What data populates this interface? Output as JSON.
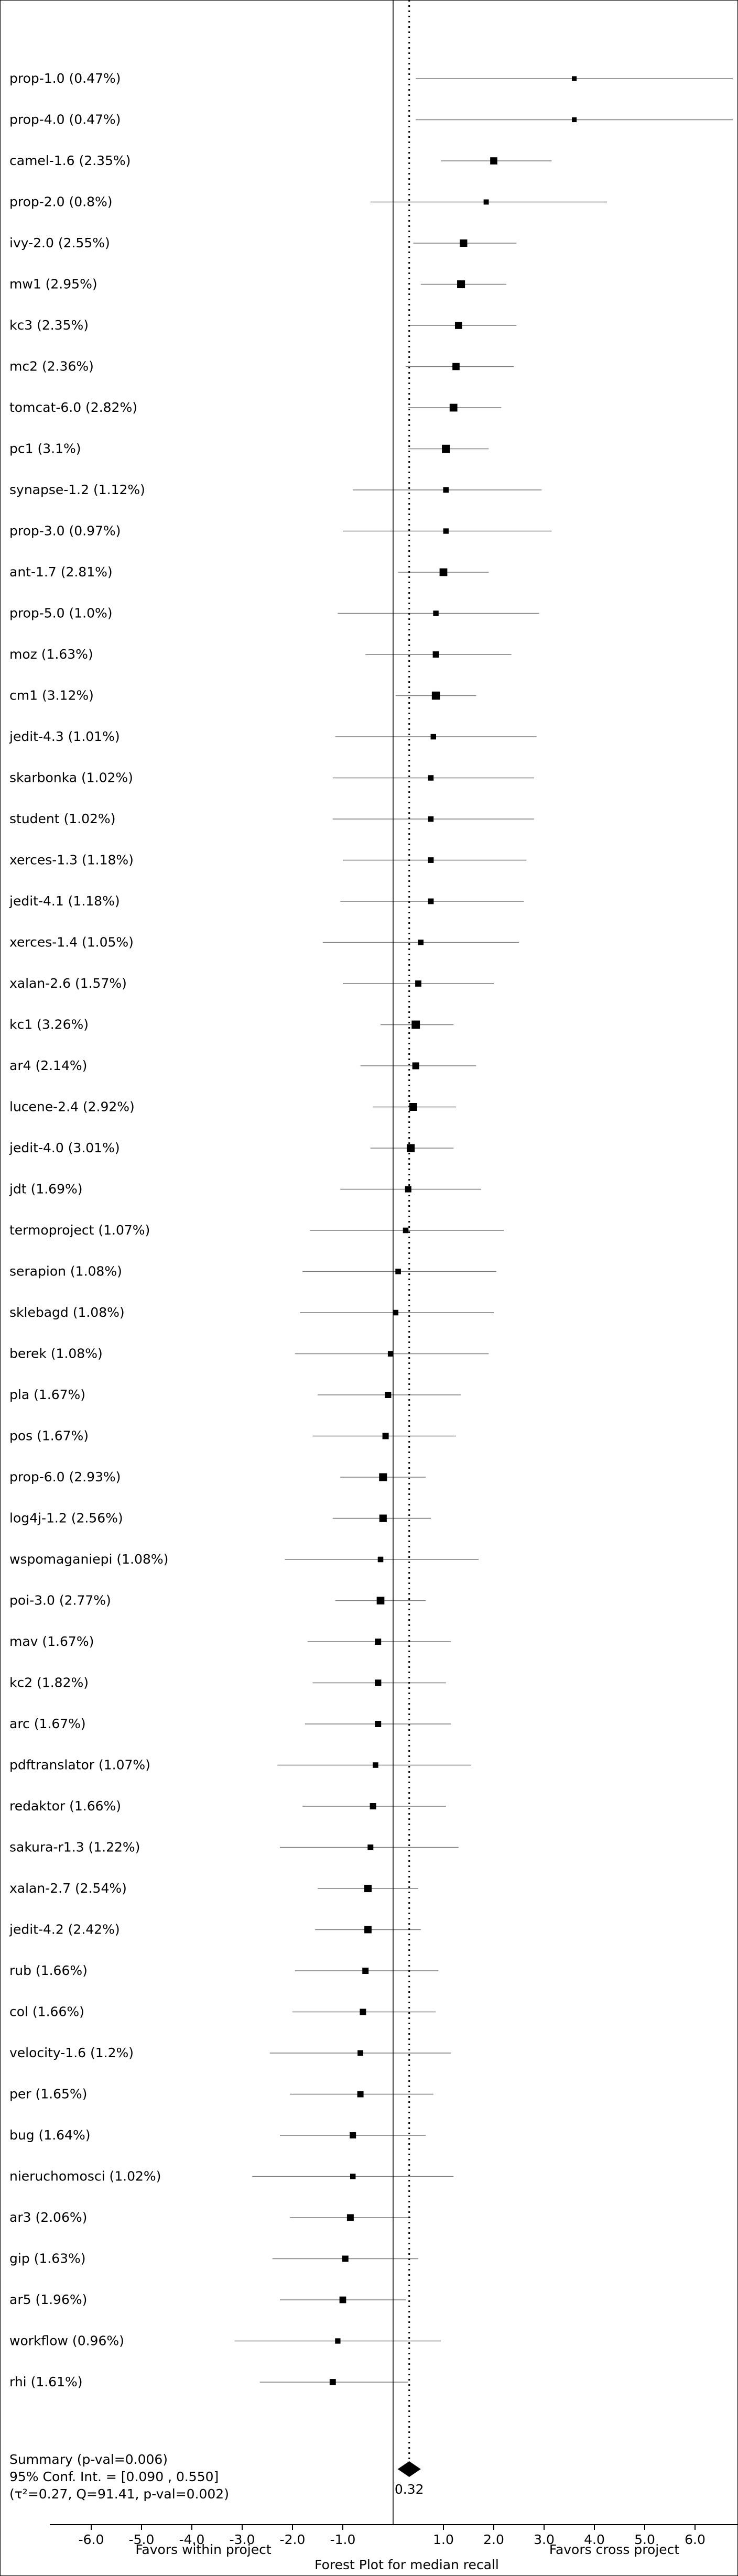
{
  "chart_data": {
    "type": "forest",
    "xlabel": "Forest Plot for median recall",
    "left_caption": "Favors within project",
    "right_caption": "Favors cross project",
    "xlim": [
      -7.0,
      7.0
    ],
    "xticks": [
      -6.0,
      -5.0,
      -4.0,
      -3.0,
      -2.0,
      -1.0,
      1.0,
      2.0,
      3.0,
      4.0,
      5.0,
      6.0
    ],
    "xtick_labels": [
      "-6.0",
      "-5.0",
      "-4.0",
      "-3.0",
      "-2.0",
      "-1.0",
      "1.0",
      "2.0",
      "3.0",
      "4.0",
      "5.0",
      "6.0"
    ],
    "null_line": 0.0,
    "summary_line": 0.32,
    "studies": [
      {
        "label": "prop-1.0 (0.47%)",
        "estimate": 3.6,
        "lower": 0.45,
        "upper": 6.75,
        "weight": 0.47
      },
      {
        "label": "prop-4.0 (0.47%)",
        "estimate": 3.6,
        "lower": 0.45,
        "upper": 6.75,
        "weight": 0.47
      },
      {
        "label": "camel-1.6 (2.35%)",
        "estimate": 2.0,
        "lower": 0.95,
        "upper": 3.15,
        "weight": 2.35
      },
      {
        "label": "prop-2.0 (0.8%)",
        "estimate": 1.85,
        "lower": -0.45,
        "upper": 4.25,
        "weight": 0.8
      },
      {
        "label": "ivy-2.0 (2.55%)",
        "estimate": 1.4,
        "lower": 0.4,
        "upper": 2.45,
        "weight": 2.55
      },
      {
        "label": "mw1 (2.95%)",
        "estimate": 1.35,
        "lower": 0.55,
        "upper": 2.25,
        "weight": 2.95
      },
      {
        "label": "kc3 (2.35%)",
        "estimate": 1.3,
        "lower": 0.3,
        "upper": 2.45,
        "weight": 2.35
      },
      {
        "label": "mc2 (2.36%)",
        "estimate": 1.25,
        "lower": 0.25,
        "upper": 2.4,
        "weight": 2.36
      },
      {
        "label": "tomcat-6.0 (2.82%)",
        "estimate": 1.2,
        "lower": 0.3,
        "upper": 2.15,
        "weight": 2.82
      },
      {
        "label": "pc1 (3.1%)",
        "estimate": 1.05,
        "lower": 0.3,
        "upper": 1.9,
        "weight": 3.1
      },
      {
        "label": "synapse-1.2 (1.12%)",
        "estimate": 1.05,
        "lower": -0.8,
        "upper": 2.95,
        "weight": 1.12
      },
      {
        "label": "prop-3.0 (0.97%)",
        "estimate": 1.05,
        "lower": -1.0,
        "upper": 3.15,
        "weight": 0.97
      },
      {
        "label": "ant-1.7 (2.81%)",
        "estimate": 1.0,
        "lower": 0.1,
        "upper": 1.9,
        "weight": 2.81
      },
      {
        "label": "prop-5.0 (1.0%)",
        "estimate": 0.85,
        "lower": -1.1,
        "upper": 2.9,
        "weight": 1.0
      },
      {
        "label": "moz (1.63%)",
        "estimate": 0.85,
        "lower": -0.55,
        "upper": 2.35,
        "weight": 1.63
      },
      {
        "label": "cm1 (3.12%)",
        "estimate": 0.85,
        "lower": 0.05,
        "upper": 1.65,
        "weight": 3.12
      },
      {
        "label": "jedit-4.3 (1.01%)",
        "estimate": 0.8,
        "lower": -1.15,
        "upper": 2.85,
        "weight": 1.01
      },
      {
        "label": "skarbonka (1.02%)",
        "estimate": 0.75,
        "lower": -1.2,
        "upper": 2.8,
        "weight": 1.02
      },
      {
        "label": "student (1.02%)",
        "estimate": 0.75,
        "lower": -1.2,
        "upper": 2.8,
        "weight": 1.02
      },
      {
        "label": "xerces-1.3 (1.18%)",
        "estimate": 0.75,
        "lower": -1.0,
        "upper": 2.65,
        "weight": 1.18
      },
      {
        "label": "jedit-4.1 (1.18%)",
        "estimate": 0.75,
        "lower": -1.05,
        "upper": 2.6,
        "weight": 1.18
      },
      {
        "label": "xerces-1.4 (1.05%)",
        "estimate": 0.55,
        "lower": -1.4,
        "upper": 2.5,
        "weight": 1.05
      },
      {
        "label": "xalan-2.6 (1.57%)",
        "estimate": 0.5,
        "lower": -1.0,
        "upper": 2.0,
        "weight": 1.57
      },
      {
        "label": "kc1 (3.26%)",
        "estimate": 0.45,
        "lower": -0.25,
        "upper": 1.2,
        "weight": 3.26
      },
      {
        "label": "ar4 (2.14%)",
        "estimate": 0.45,
        "lower": -0.65,
        "upper": 1.65,
        "weight": 2.14
      },
      {
        "label": "lucene-2.4 (2.92%)",
        "estimate": 0.4,
        "lower": -0.4,
        "upper": 1.25,
        "weight": 2.92
      },
      {
        "label": "jedit-4.0 (3.01%)",
        "estimate": 0.35,
        "lower": -0.45,
        "upper": 1.2,
        "weight": 3.01
      },
      {
        "label": "jdt (1.69%)",
        "estimate": 0.3,
        "lower": -1.05,
        "upper": 1.75,
        "weight": 1.69
      },
      {
        "label": "termoproject (1.07%)",
        "estimate": 0.25,
        "lower": -1.65,
        "upper": 2.2,
        "weight": 1.07
      },
      {
        "label": "serapion (1.08%)",
        "estimate": 0.1,
        "lower": -1.8,
        "upper": 2.05,
        "weight": 1.08
      },
      {
        "label": "sklebagd (1.08%)",
        "estimate": 0.05,
        "lower": -1.85,
        "upper": 2.0,
        "weight": 1.08
      },
      {
        "label": "berek (1.08%)",
        "estimate": -0.05,
        "lower": -1.95,
        "upper": 1.9,
        "weight": 1.08
      },
      {
        "label": "pla (1.67%)",
        "estimate": -0.1,
        "lower": -1.5,
        "upper": 1.35,
        "weight": 1.67
      },
      {
        "label": "pos (1.67%)",
        "estimate": -0.15,
        "lower": -1.6,
        "upper": 1.25,
        "weight": 1.67
      },
      {
        "label": "prop-6.0 (2.93%)",
        "estimate": -0.2,
        "lower": -1.05,
        "upper": 0.65,
        "weight": 2.93
      },
      {
        "label": "log4j-1.2 (2.56%)",
        "estimate": -0.2,
        "lower": -1.2,
        "upper": 0.75,
        "weight": 2.56
      },
      {
        "label": "wspomaganiepi (1.08%)",
        "estimate": -0.25,
        "lower": -2.15,
        "upper": 1.7,
        "weight": 1.08
      },
      {
        "label": "poi-3.0 (2.77%)",
        "estimate": -0.25,
        "lower": -1.15,
        "upper": 0.65,
        "weight": 2.77
      },
      {
        "label": "mav (1.67%)",
        "estimate": -0.3,
        "lower": -1.7,
        "upper": 1.15,
        "weight": 1.67
      },
      {
        "label": "kc2 (1.82%)",
        "estimate": -0.3,
        "lower": -1.6,
        "upper": 1.05,
        "weight": 1.82
      },
      {
        "label": "arc (1.67%)",
        "estimate": -0.3,
        "lower": -1.75,
        "upper": 1.15,
        "weight": 1.67
      },
      {
        "label": "pdftranslator (1.07%)",
        "estimate": -0.35,
        "lower": -2.3,
        "upper": 1.55,
        "weight": 1.07
      },
      {
        "label": "redaktor (1.66%)",
        "estimate": -0.4,
        "lower": -1.8,
        "upper": 1.05,
        "weight": 1.66
      },
      {
        "label": "sakura-r1.3 (1.22%)",
        "estimate": -0.45,
        "lower": -2.25,
        "upper": 1.3,
        "weight": 1.22
      },
      {
        "label": "xalan-2.7 (2.54%)",
        "estimate": -0.5,
        "lower": -1.5,
        "upper": 0.5,
        "weight": 2.54
      },
      {
        "label": "jedit-4.2 (2.42%)",
        "estimate": -0.5,
        "lower": -1.55,
        "upper": 0.55,
        "weight": 2.42
      },
      {
        "label": "rub (1.66%)",
        "estimate": -0.55,
        "lower": -1.95,
        "upper": 0.9,
        "weight": 1.66
      },
      {
        "label": "col (1.66%)",
        "estimate": -0.6,
        "lower": -2.0,
        "upper": 0.85,
        "weight": 1.66
      },
      {
        "label": "velocity-1.6 (1.2%)",
        "estimate": -0.65,
        "lower": -2.45,
        "upper": 1.15,
        "weight": 1.2
      },
      {
        "label": "per (1.65%)",
        "estimate": -0.65,
        "lower": -2.05,
        "upper": 0.8,
        "weight": 1.65
      },
      {
        "label": "bug (1.64%)",
        "estimate": -0.8,
        "lower": -2.25,
        "upper": 0.65,
        "weight": 1.64
      },
      {
        "label": "nieruchomosci (1.02%)",
        "estimate": -0.8,
        "lower": -2.8,
        "upper": 1.2,
        "weight": 1.02
      },
      {
        "label": "ar3 (2.06%)",
        "estimate": -0.85,
        "lower": -2.05,
        "upper": 0.35,
        "weight": 2.06
      },
      {
        "label": "gip (1.63%)",
        "estimate": -0.95,
        "lower": -2.4,
        "upper": 0.5,
        "weight": 1.63
      },
      {
        "label": "ar5 (1.96%)",
        "estimate": -1.0,
        "lower": -2.25,
        "upper": 0.25,
        "weight": 1.96
      },
      {
        "label": "workflow (0.96%)",
        "estimate": -1.1,
        "lower": -3.15,
        "upper": 0.95,
        "weight": 0.96
      },
      {
        "label": "rhi (1.61%)",
        "estimate": -1.2,
        "lower": -2.65,
        "upper": 0.3,
        "weight": 1.61
      }
    ],
    "summary": {
      "estimate": 0.32,
      "lower": 0.09,
      "upper": 0.55,
      "value_label": "0.32",
      "line1": "Summary (p-val=0.006)",
      "line2": "95% Conf. Int. = [0.090 , 0.550]",
      "line3": "(τ²=0.27, Q=91.41, p-val=0.002)"
    }
  }
}
